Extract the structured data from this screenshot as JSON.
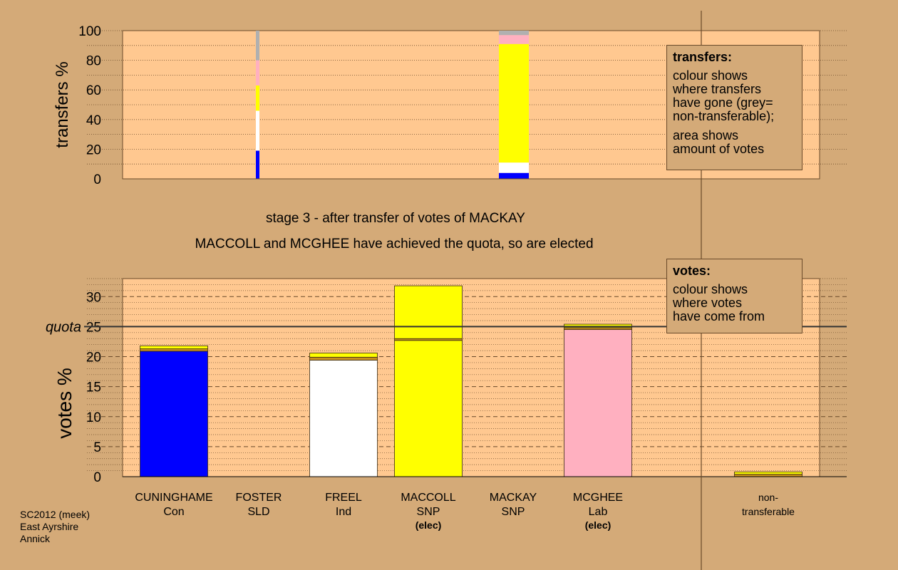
{
  "chart_data": [
    {
      "type": "bar",
      "ylabel": "transfers %",
      "ylim": [
        0,
        100
      ],
      "yticks": [
        0,
        20,
        40,
        60,
        80,
        100
      ],
      "categories": [
        "FOSTER",
        "MACKAY"
      ],
      "stacks": [
        {
          "candidate": "FOSTER",
          "segments": [
            {
              "party": "Con",
              "color": "#0000ff",
              "value": 19
            },
            {
              "party": "Ind",
              "color": "#ffffff",
              "value": 27
            },
            {
              "party": "SNP",
              "color": "#ffff00",
              "value": 17
            },
            {
              "party": "Lab",
              "color": "#ffb0c0",
              "value": 17
            },
            {
              "party": "non-transferable",
              "color": "#b0b0b0",
              "value": 20
            }
          ]
        },
        {
          "candidate": "MACKAY",
          "segments": [
            {
              "party": "Con",
              "color": "#0000ff",
              "value": 4
            },
            {
              "party": "Ind",
              "color": "#ffffff",
              "value": 7
            },
            {
              "party": "SNP",
              "color": "#ffff00",
              "value": 80
            },
            {
              "party": "Lab",
              "color": "#ffb0c0",
              "value": 6
            },
            {
              "party": "non-transferable",
              "color": "#b0b0b0",
              "value": 3
            }
          ]
        }
      ]
    },
    {
      "type": "bar",
      "ylabel": "votes %",
      "ylim": [
        0,
        33
      ],
      "yticks": [
        0,
        5,
        10,
        15,
        20,
        25,
        30
      ],
      "quota": 25,
      "quota_label": "quota",
      "categories": [
        {
          "name": "CUNINGHAME",
          "party": "Con",
          "elected": ""
        },
        {
          "name": "FOSTER",
          "party": "SLD",
          "elected": ""
        },
        {
          "name": "FREEL",
          "party": "Ind",
          "elected": ""
        },
        {
          "name": "MACCOLL",
          "party": "SNP",
          "elected": "(elec)"
        },
        {
          "name": "MACKAY",
          "party": "SNP",
          "elected": ""
        },
        {
          "name": "MCGHEE",
          "party": "Lab",
          "elected": "(elec)"
        },
        {
          "name": "non-",
          "party": "transferable",
          "elected": ""
        }
      ],
      "stacks": [
        {
          "candidate": "CUNINGHAME",
          "segments": [
            {
              "color": "#0000ff",
              "value": 20.9
            },
            {
              "color": "#c89020",
              "value": 0.4
            },
            {
              "color": "#ffff00",
              "value": 0.5
            }
          ]
        },
        {
          "candidate": "FOSTER",
          "segments": []
        },
        {
          "candidate": "FREEL",
          "segments": [
            {
              "color": "#ffffff",
              "value": 19.4
            },
            {
              "color": "#c89020",
              "value": 0.5
            },
            {
              "color": "#ffff00",
              "value": 0.7
            }
          ]
        },
        {
          "candidate": "MACCOLL",
          "segments": [
            {
              "color": "#ffff00",
              "value": 22.7
            },
            {
              "color": "#c89020",
              "value": 0.3
            },
            {
              "color": "#ffff00",
              "value": 8.8
            }
          ]
        },
        {
          "candidate": "MACKAY",
          "segments": []
        },
        {
          "candidate": "MCGHEE",
          "segments": [
            {
              "color": "#ffb0c0",
              "value": 24.5
            },
            {
              "color": "#c89020",
              "value": 0.3
            },
            {
              "color": "#ffff00",
              "value": 0.6
            }
          ]
        },
        {
          "candidate": "non-transferable",
          "segments": [
            {
              "color": "#c89020",
              "value": 0.4
            },
            {
              "color": "#ffff00",
              "value": 0.4
            }
          ]
        }
      ]
    }
  ],
  "stage_title": "stage 3 - after transfer of votes of MACKAY",
  "stage_note": "MACCOLL and MCGHEE have achieved the quota, so are elected",
  "legend_transfers": {
    "heading": "transfers:",
    "para1": "colour shows\nwhere transfers\nhave gone (grey=\nnon-transferable);",
    "para2": "area shows\namount of votes"
  },
  "legend_votes": {
    "heading": "votes:",
    "para1": "colour shows\nwhere votes\nhave come from"
  },
  "footer": {
    "line1": "SC2012 (meek)",
    "line2": "East Ayrshire",
    "line3": "Annick"
  },
  "colors": {
    "background": "#d4aa78",
    "plot_bg": "#ffc890"
  }
}
